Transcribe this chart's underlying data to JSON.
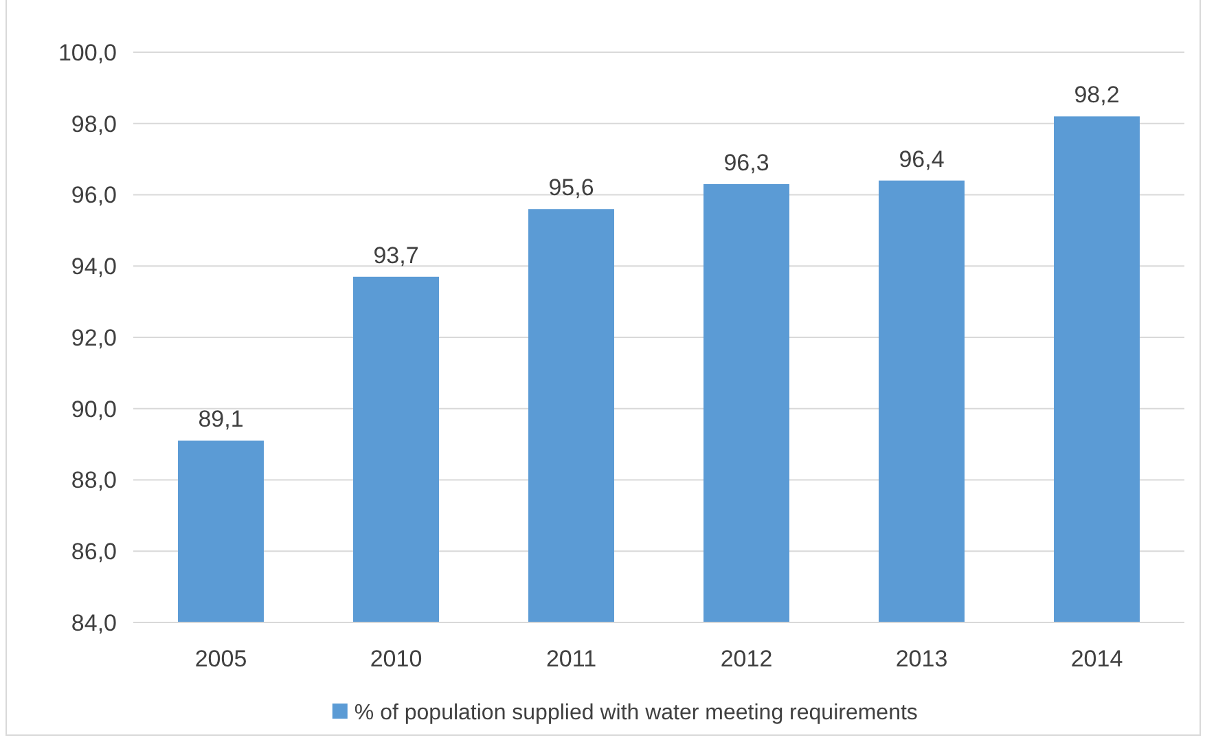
{
  "chart_data": {
    "type": "bar",
    "categories": [
      "2005",
      "2010",
      "2011",
      "2012",
      "2013",
      "2014"
    ],
    "series": [
      {
        "name": "% of population supplied with water meeting requirements",
        "color": "#5b9bd5",
        "values": [
          89.1,
          93.7,
          95.6,
          96.3,
          96.4,
          98.2
        ],
        "value_labels": [
          "89,1",
          "93,7",
          "95,6",
          "96,3",
          "96,4",
          "98,2"
        ]
      }
    ],
    "ylim": [
      84,
      100
    ],
    "yticks": [
      {
        "value": 84,
        "label": "84,0"
      },
      {
        "value": 86,
        "label": "86,0"
      },
      {
        "value": 88,
        "label": "88,0"
      },
      {
        "value": 90,
        "label": "90,0"
      },
      {
        "value": 92,
        "label": "92,0"
      },
      {
        "value": 94,
        "label": "94,0"
      },
      {
        "value": 96,
        "label": "96,0"
      },
      {
        "value": 98,
        "label": "98,0"
      },
      {
        "value": 100,
        "label": "100,0"
      }
    ],
    "grid": "y",
    "legend": "bottom"
  }
}
